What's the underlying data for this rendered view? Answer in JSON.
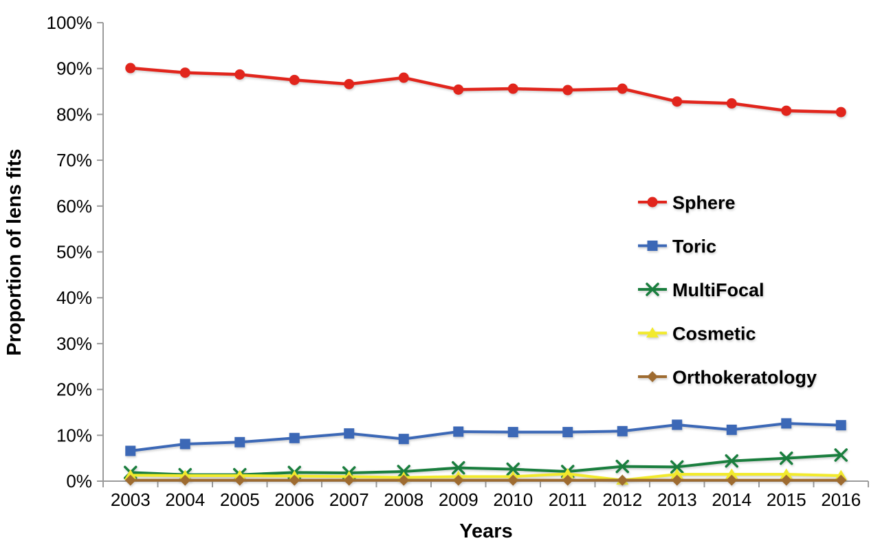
{
  "page": {
    "background": "#ffffff"
  },
  "chart_data": {
    "type": "line",
    "title": "",
    "xlabel": "Years",
    "ylabel": "Proportion of lens fits",
    "categories": [
      "2003",
      "2004",
      "2005",
      "2006",
      "2007",
      "2008",
      "2009",
      "2010",
      "2011",
      "2012",
      "2013",
      "2014",
      "2015",
      "2016"
    ],
    "series": [
      {
        "name": "Sphere",
        "color": "#e1251c",
        "marker": "circle",
        "values": [
          90.1,
          89.1,
          88.7,
          87.5,
          86.6,
          88.0,
          85.4,
          85.6,
          85.3,
          85.6,
          82.8,
          82.4,
          80.8,
          80.5
        ]
      },
      {
        "name": "Toric",
        "color": "#3c68b6",
        "marker": "square",
        "values": [
          6.6,
          8.1,
          8.5,
          9.4,
          10.4,
          9.2,
          10.8,
          10.7,
          10.7,
          10.9,
          12.3,
          11.2,
          12.6,
          12.2
        ]
      },
      {
        "name": "MultiFocal",
        "color": "#1a7e3e",
        "marker": "x",
        "values": [
          1.9,
          1.4,
          1.4,
          1.9,
          1.8,
          2.1,
          2.9,
          2.6,
          2.1,
          3.2,
          3.1,
          4.4,
          5.0,
          5.7
        ]
      },
      {
        "name": "Cosmetic",
        "color": "#f2ea2d",
        "marker": "triangle",
        "values": [
          1.3,
          1.2,
          1.2,
          1.1,
          1.0,
          0.8,
          1.0,
          1.0,
          1.6,
          0.2,
          1.5,
          1.5,
          1.5,
          1.2
        ]
      },
      {
        "name": "Orthokeratology",
        "color": "#9e6b30",
        "marker": "diamond",
        "values": [
          0.2,
          0.2,
          0.2,
          0.2,
          0.2,
          0.2,
          0.2,
          0.2,
          0.2,
          0.2,
          0.2,
          0.2,
          0.2,
          0.2
        ]
      }
    ],
    "ylim": [
      0,
      100
    ],
    "y_tick_step": 10,
    "y_tick_suffix": "%",
    "grid": false,
    "legend_position": "right-center",
    "axis_color": "#9a9a9a",
    "text_color": "#000000"
  }
}
